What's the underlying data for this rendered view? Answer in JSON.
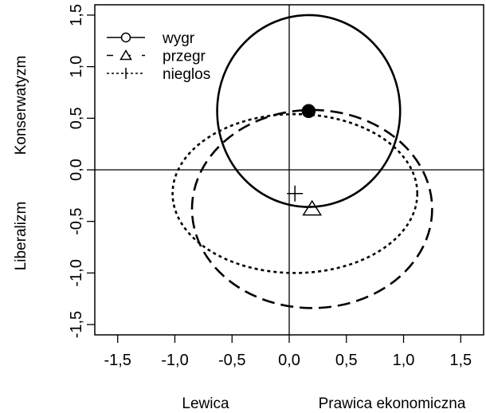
{
  "chart_data": {
    "type": "scatter",
    "xlim": [
      -1.7,
      1.7
    ],
    "ylim": [
      -1.6,
      1.6
    ],
    "x_ticks": [
      "-1,5",
      "-1,0",
      "-0,5",
      "0,0",
      "0,5",
      "1,0",
      "1,5"
    ],
    "x_tick_values": [
      -1.5,
      -1.0,
      -0.5,
      0.0,
      0.5,
      1.0,
      1.5
    ],
    "y_ticks": [
      "-1,5",
      "-1,0",
      "-0,5",
      "0,0",
      "0,5",
      "1,0",
      "1,5"
    ],
    "y_tick_values": [
      -1.5,
      -1.0,
      -0.5,
      0.0,
      0.5,
      1.0,
      1.5
    ],
    "xlabel_left": "Lewica",
    "xlabel_right": "Prawica ekonomiczna",
    "ylabel_bottom": "Liberalizm",
    "ylabel_top": "Konserwatyzm",
    "reference_lines": {
      "x": 0,
      "y": 0
    },
    "legend_position": "top-left",
    "series": [
      {
        "name": "wygr",
        "marker": "circle",
        "line": "solid",
        "center": [
          0.17,
          0.57
        ],
        "radius_x": 0.8,
        "radius_y": 0.93
      },
      {
        "name": "przegr",
        "marker": "triangle",
        "line": "dashed",
        "center": [
          0.2,
          -0.38
        ],
        "radius_x": 1.05,
        "radius_y": 0.96
      },
      {
        "name": "nieglos",
        "marker": "plus",
        "line": "dotted",
        "center": [
          0.05,
          -0.23
        ],
        "radius_x": 1.07,
        "radius_y": 0.77
      }
    ],
    "point_filled": [
      0.17,
      0.57
    ]
  }
}
